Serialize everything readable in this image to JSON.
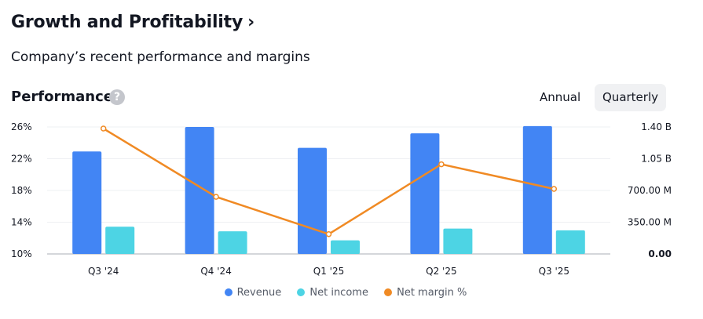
{
  "header": {
    "title": "Growth and Profitability",
    "chevron": "›",
    "subtitle": "Company’s recent performance and margins"
  },
  "performance": {
    "title": "Performance",
    "help_icon": "?",
    "toggle": {
      "annual": "Annual",
      "quarterly": "Quarterly",
      "selected": "Quarterly"
    }
  },
  "colors": {
    "revenue": "#4285f4",
    "net_income": "#4dd4e4",
    "net_margin": "#f08a24"
  },
  "chart_data": {
    "type": "bar",
    "categories": [
      "Q3 '24",
      "Q4 '24",
      "Q1 '25",
      "Q2 '25",
      "Q3 '25"
    ],
    "series": [
      {
        "name": "Revenue",
        "axis": "right",
        "unit": "B",
        "values": [
          1.13,
          1.4,
          1.17,
          1.33,
          1.41
        ]
      },
      {
        "name": "Net income",
        "axis": "right",
        "unit": "B",
        "values": [
          0.3,
          0.25,
          0.15,
          0.28,
          0.26
        ]
      },
      {
        "name": "Net margin %",
        "type": "line",
        "axis": "left",
        "unit": "%",
        "values": [
          25.8,
          17.2,
          12.5,
          21.3,
          18.2
        ]
      }
    ],
    "left_axis": {
      "ticks": [
        "26%",
        "22%",
        "18%",
        "14%",
        "10%"
      ],
      "ylim": [
        10,
        26
      ]
    },
    "right_axis": {
      "ticks": [
        "1.40 B",
        "1.05 B",
        "700.00 M",
        "350.00 M",
        "0.00"
      ],
      "ylim": [
        0,
        1.4
      ]
    },
    "legend": [
      "Revenue",
      "Net income",
      "Net margin %"
    ]
  }
}
